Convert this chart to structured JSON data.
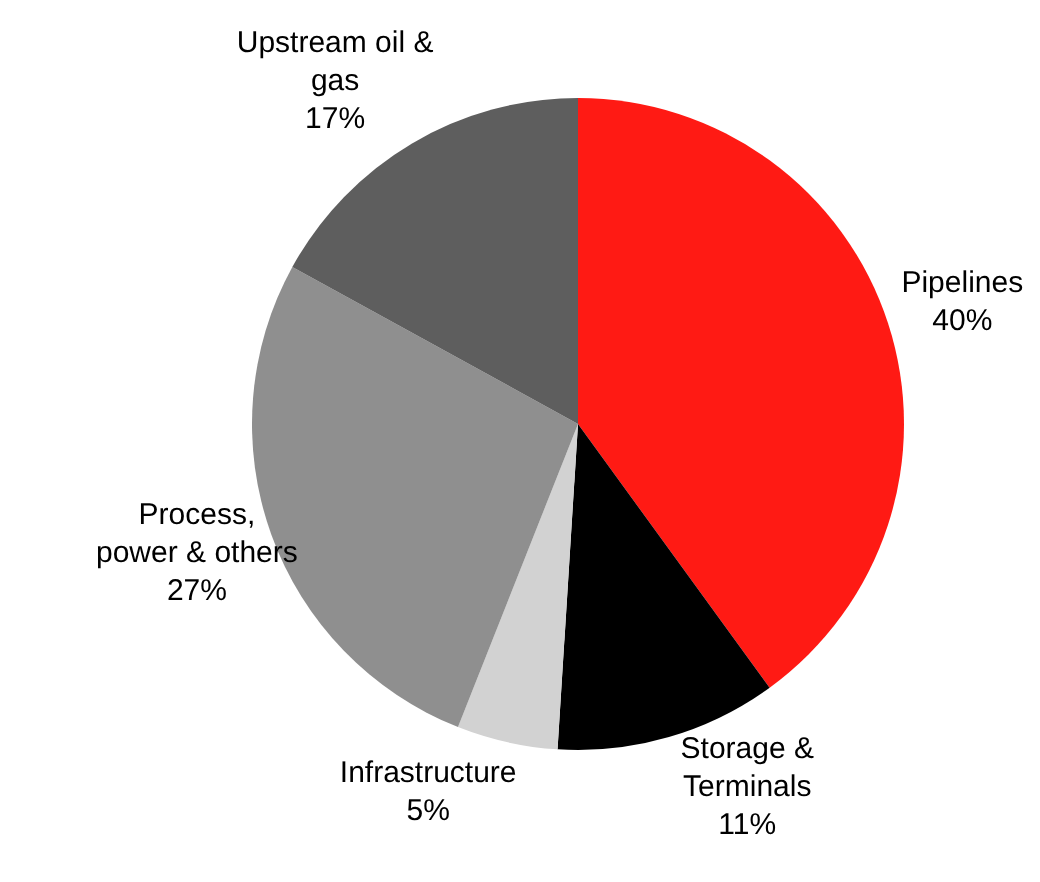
{
  "chart_data": {
    "type": "pie",
    "categories": [
      "Pipelines",
      "Storage & Terminals",
      "Infrastructure",
      "Process, power & others",
      "Upstream oil & gas"
    ],
    "values": [
      40,
      11,
      5,
      27,
      17
    ],
    "colors": [
      "#ff1a14",
      "#000000",
      "#d2d2d2",
      "#8f8f8f",
      "#5e5e5e"
    ],
    "value_labels": [
      "40%",
      "11%",
      "5%",
      "27%",
      "17%"
    ]
  }
}
